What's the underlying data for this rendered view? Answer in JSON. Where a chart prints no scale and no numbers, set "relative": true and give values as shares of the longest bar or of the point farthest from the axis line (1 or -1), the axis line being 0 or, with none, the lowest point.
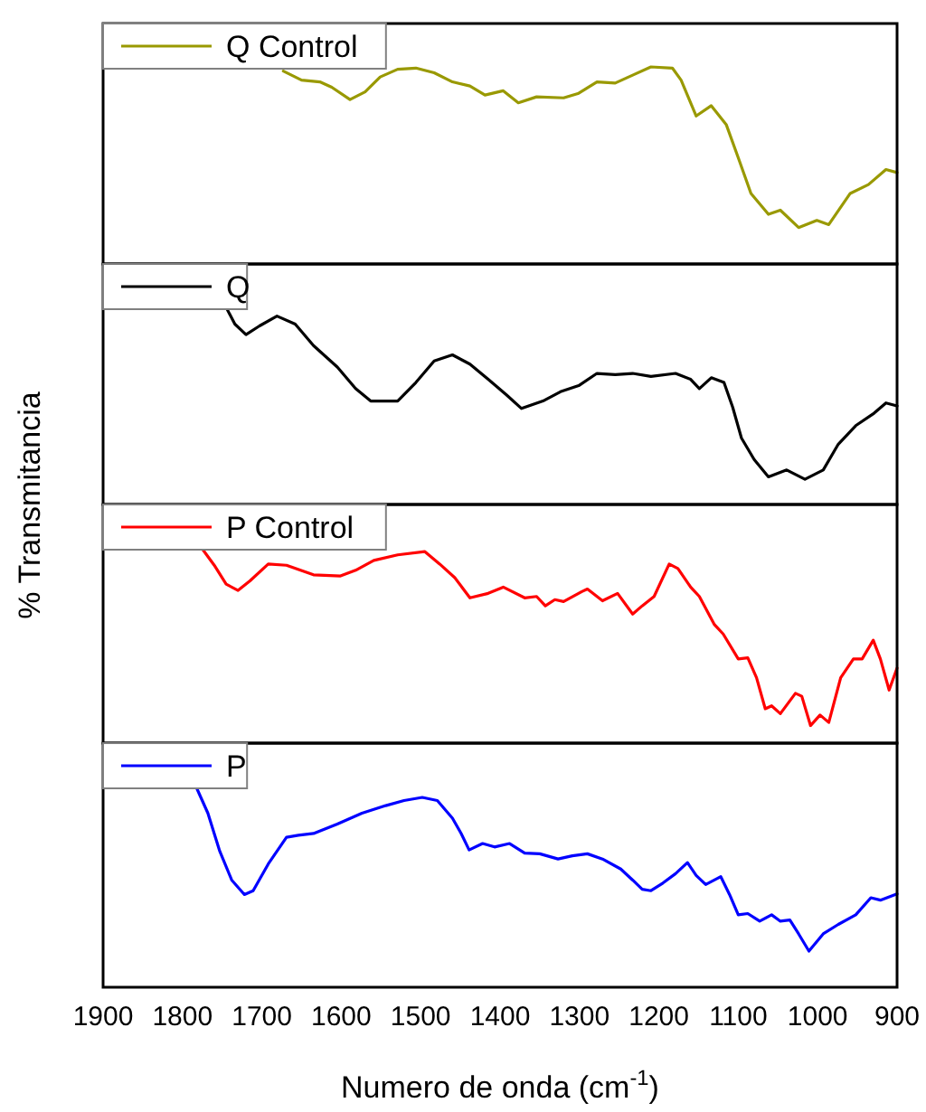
{
  "chart_data": [
    {
      "type": "line",
      "relative": true,
      "legend": "top left",
      "tick_labels": false,
      "xlim": [
        1900,
        900
      ],
      "ylabel": "% Transmitancia",
      "x": [
        1673,
        1650,
        1627,
        1612,
        1589,
        1570,
        1551,
        1529,
        1506,
        1483,
        1460,
        1438,
        1419,
        1396,
        1377,
        1354,
        1320,
        1301,
        1278,
        1255,
        1233,
        1210,
        1183,
        1172,
        1153,
        1134,
        1115,
        1100,
        1084,
        1062,
        1047,
        1024,
        1001,
        986,
        959,
        936,
        914,
        900
      ],
      "series": [
        {
          "name": "Q Control",
          "color": "#999900",
          "values": [
            0.979,
            0.933,
            0.924,
            0.897,
            0.834,
            0.873,
            0.949,
            0.988,
            0.994,
            0.97,
            0.924,
            0.903,
            0.857,
            0.879,
            0.818,
            0.848,
            0.843,
            0.866,
            0.924,
            0.918,
            0.958,
            1.0,
            0.994,
            0.933,
            0.751,
            0.803,
            0.706,
            0.539,
            0.358,
            0.252,
            0.273,
            0.185,
            0.221,
            0.2,
            0.358,
            0.403,
            0.479,
            0.464
          ]
        }
      ]
    },
    {
      "type": "line",
      "relative": true,
      "legend": "top left",
      "tick_labels": false,
      "xlim": [
        1900,
        900
      ],
      "x": [
        1745,
        1734,
        1720,
        1703,
        1681,
        1658,
        1635,
        1605,
        1582,
        1563,
        1529,
        1506,
        1483,
        1460,
        1438,
        1415,
        1392,
        1373,
        1346,
        1324,
        1301,
        1278,
        1255,
        1233,
        1210,
        1179,
        1160,
        1149,
        1134,
        1118,
        1107,
        1096,
        1080,
        1062,
        1039,
        1016,
        993,
        974,
        952,
        929,
        914,
        900
      ],
      "series": [
        {
          "name": "Q",
          "color": "#000000",
          "values": [
            1.0,
            0.915,
            0.862,
            0.906,
            0.956,
            0.915,
            0.806,
            0.697,
            0.588,
            0.525,
            0.525,
            0.619,
            0.728,
            0.759,
            0.712,
            0.635,
            0.556,
            0.487,
            0.525,
            0.572,
            0.603,
            0.665,
            0.659,
            0.665,
            0.65,
            0.665,
            0.635,
            0.588,
            0.643,
            0.619,
            0.493,
            0.337,
            0.228,
            0.14,
            0.175,
            0.128,
            0.175,
            0.306,
            0.4,
            0.463,
            0.515,
            0.5
          ]
        }
      ]
    },
    {
      "type": "line",
      "relative": true,
      "legend": "top left",
      "tick_labels": false,
      "xlim": [
        1900,
        900
      ],
      "x": [
        1776,
        1760,
        1745,
        1730,
        1715,
        1692,
        1669,
        1635,
        1601,
        1582,
        1559,
        1529,
        1495,
        1476,
        1457,
        1438,
        1415,
        1396,
        1369,
        1354,
        1343,
        1331,
        1320,
        1297,
        1290,
        1271,
        1252,
        1233,
        1221,
        1206,
        1187,
        1176,
        1160,
        1149,
        1130,
        1119,
        1100,
        1088,
        1077,
        1066,
        1058,
        1047,
        1028,
        1020,
        1009,
        997,
        986,
        971,
        955,
        944,
        930,
        921,
        910,
        900
      ],
      "series": [
        {
          "name": "P Control",
          "color": "#ff0000",
          "values": [
            1.0,
            0.911,
            0.814,
            0.782,
            0.831,
            0.917,
            0.911,
            0.862,
            0.856,
            0.885,
            0.936,
            0.964,
            0.981,
            0.917,
            0.847,
            0.744,
            0.767,
            0.799,
            0.744,
            0.751,
            0.703,
            0.735,
            0.725,
            0.776,
            0.789,
            0.729,
            0.767,
            0.661,
            0.703,
            0.751,
            0.917,
            0.894,
            0.799,
            0.751,
            0.607,
            0.559,
            0.431,
            0.437,
            0.335,
            0.176,
            0.191,
            0.151,
            0.255,
            0.24,
            0.09,
            0.144,
            0.106,
            0.335,
            0.431,
            0.431,
            0.527,
            0.431,
            0.272,
            0.384
          ]
        }
      ]
    },
    {
      "type": "line",
      "relative": true,
      "legend": "top left",
      "tick_labels": "x",
      "xlim": [
        1900,
        900
      ],
      "xticks": [
        1900,
        1800,
        1700,
        1600,
        1500,
        1400,
        1300,
        1200,
        1100,
        1000,
        900
      ],
      "xlabel": "Numero de onda (cm$^{-1}$)",
      "x": [
        1783,
        1768,
        1753,
        1738,
        1722,
        1711,
        1692,
        1669,
        1654,
        1635,
        1605,
        1574,
        1544,
        1521,
        1498,
        1479,
        1460,
        1449,
        1439,
        1422,
        1407,
        1388,
        1369,
        1350,
        1327,
        1309,
        1290,
        1271,
        1248,
        1233,
        1221,
        1210,
        1195,
        1179,
        1164,
        1153,
        1141,
        1122,
        1111,
        1100,
        1088,
        1073,
        1058,
        1047,
        1035,
        1024,
        1011,
        993,
        974,
        952,
        933,
        921,
        900
      ],
      "series": [
        {
          "name": "P",
          "color": "#0000ff",
          "values": [
            1.0,
            0.867,
            0.677,
            0.534,
            0.462,
            0.481,
            0.614,
            0.747,
            0.757,
            0.766,
            0.813,
            0.867,
            0.905,
            0.93,
            0.946,
            0.93,
            0.842,
            0.766,
            0.684,
            0.716,
            0.699,
            0.716,
            0.668,
            0.665,
            0.639,
            0.655,
            0.665,
            0.639,
            0.589,
            0.534,
            0.488,
            0.481,
            0.519,
            0.566,
            0.621,
            0.557,
            0.512,
            0.551,
            0.462,
            0.361,
            0.367,
            0.329,
            0.361,
            0.329,
            0.335,
            0.266,
            0.18,
            0.266,
            0.313,
            0.361,
            0.446,
            0.434,
            0.465
          ]
        }
      ]
    }
  ]
}
